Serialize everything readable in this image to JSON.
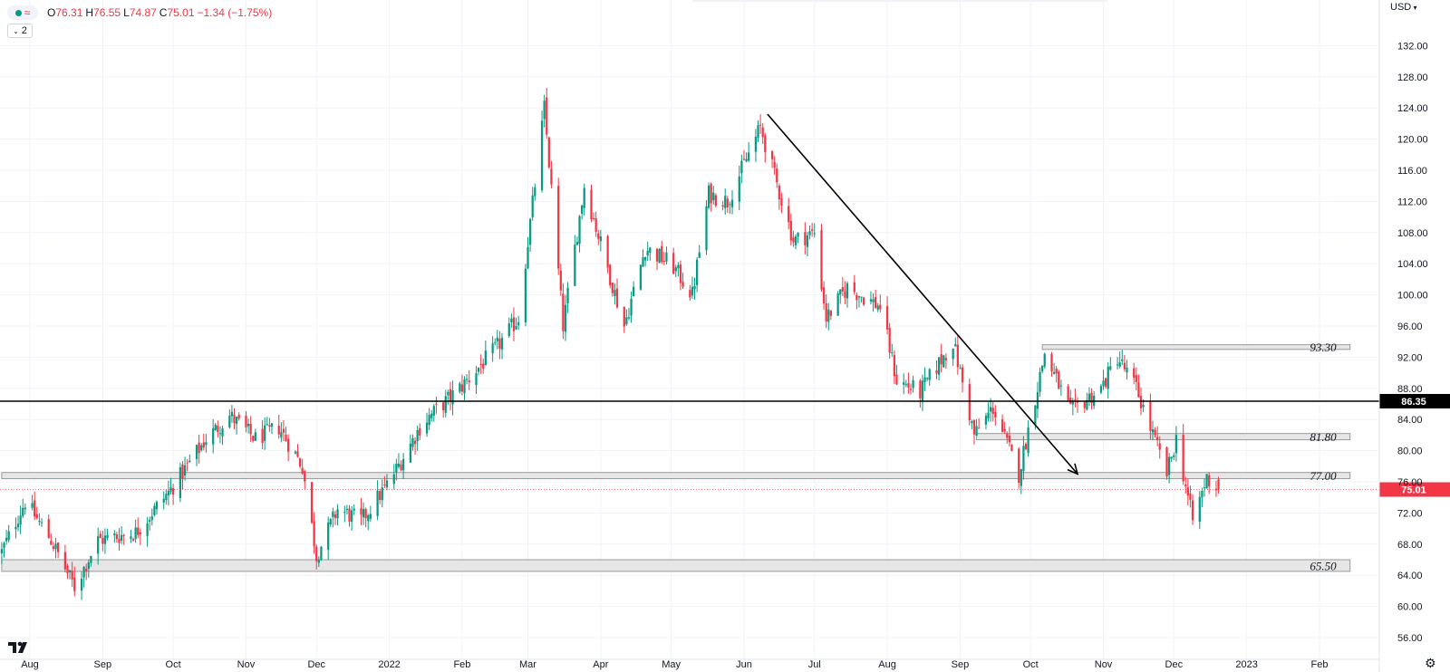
{
  "legend": {
    "open_label": "O",
    "open": "76.31",
    "high_label": "H",
    "high": "76.55",
    "low_label": "L",
    "low": "74.87",
    "close_label": "C",
    "close": "75.01",
    "change": "−1.34 (−1.75%)",
    "indicator_count": "2"
  },
  "currency": "USD",
  "colors": {
    "up": "#089981",
    "down": "#f23645",
    "grid": "#f0f3fa",
    "text": "#131722",
    "zone_fill": "#e6e6e6",
    "zone_border": "#9a9a9a"
  },
  "chart_data": {
    "type": "candlestick",
    "ylim": [
      54,
      134
    ],
    "y_ticks": [
      "56.00",
      "60.00",
      "64.00",
      "68.00",
      "72.00",
      "76.00",
      "80.00",
      "84.00",
      "88.00",
      "92.00",
      "96.00",
      "100.00",
      "104.00",
      "108.00",
      "112.00",
      "116.00",
      "120.00",
      "124.00",
      "128.00",
      "132.00"
    ],
    "x_ticks": [
      {
        "label": "Aug",
        "date": "2021-08-01"
      },
      {
        "label": "Sep",
        "date": "2021-09-01"
      },
      {
        "label": "Oct",
        "date": "2021-10-01"
      },
      {
        "label": "Nov",
        "date": "2021-11-01"
      },
      {
        "label": "Dec",
        "date": "2021-12-01"
      },
      {
        "label": "2022",
        "date": "2022-01-01"
      },
      {
        "label": "Feb",
        "date": "2022-02-01"
      },
      {
        "label": "Mar",
        "date": "2022-03-01"
      },
      {
        "label": "Apr",
        "date": "2022-04-01"
      },
      {
        "label": "May",
        "date": "2022-05-01"
      },
      {
        "label": "Jun",
        "date": "2022-06-01"
      },
      {
        "label": "Jul",
        "date": "2022-07-01"
      },
      {
        "label": "Aug",
        "date": "2022-08-01"
      },
      {
        "label": "Sep",
        "date": "2022-09-01"
      },
      {
        "label": "Oct",
        "date": "2022-10-01"
      },
      {
        "label": "Nov",
        "date": "2022-11-01"
      },
      {
        "label": "Dec",
        "date": "2022-12-01"
      },
      {
        "label": "2023",
        "date": "2023-01-01"
      },
      {
        "label": "Feb",
        "date": "2023-02-01"
      }
    ],
    "price_path": [
      {
        "date": "2021-07-20",
        "close": 67.0
      },
      {
        "date": "2021-07-30",
        "close": 73.5
      },
      {
        "date": "2021-08-10",
        "close": 68.5
      },
      {
        "date": "2021-08-20",
        "close": 62.5
      },
      {
        "date": "2021-08-30",
        "close": 68.5
      },
      {
        "date": "2021-09-15",
        "close": 69.5
      },
      {
        "date": "2021-09-30",
        "close": 75.0
      },
      {
        "date": "2021-10-15",
        "close": 81.5
      },
      {
        "date": "2021-10-25",
        "close": 84.5
      },
      {
        "date": "2021-11-05",
        "close": 81.5
      },
      {
        "date": "2021-11-15",
        "close": 83.0
      },
      {
        "date": "2021-11-25",
        "close": 78.0
      },
      {
        "date": "2021-12-01",
        "close": 66.5
      },
      {
        "date": "2021-12-10",
        "close": 72.5
      },
      {
        "date": "2021-12-20",
        "close": 71.0
      },
      {
        "date": "2022-01-01",
        "close": 76.0
      },
      {
        "date": "2022-01-15",
        "close": 83.5
      },
      {
        "date": "2022-01-31",
        "close": 88.0
      },
      {
        "date": "2022-02-15",
        "close": 93.0
      },
      {
        "date": "2022-02-25",
        "close": 97.0
      },
      {
        "date": "2022-03-08",
        "close": 124.0
      },
      {
        "date": "2022-03-16",
        "close": 96.0
      },
      {
        "date": "2022-03-25",
        "close": 114.0
      },
      {
        "date": "2022-04-11",
        "close": 96.0
      },
      {
        "date": "2022-04-20",
        "close": 106.0
      },
      {
        "date": "2022-05-01",
        "close": 104.0
      },
      {
        "date": "2022-05-10",
        "close": 100.0
      },
      {
        "date": "2022-05-17",
        "close": 113.0
      },
      {
        "date": "2022-05-25",
        "close": 112.0
      },
      {
        "date": "2022-06-08",
        "close": 121.5
      },
      {
        "date": "2022-06-22",
        "close": 107.0
      },
      {
        "date": "2022-07-01",
        "close": 108.0
      },
      {
        "date": "2022-07-06",
        "close": 97.0
      },
      {
        "date": "2022-07-15",
        "close": 101.0
      },
      {
        "date": "2022-07-29",
        "close": 98.5
      },
      {
        "date": "2022-08-05",
        "close": 89.0
      },
      {
        "date": "2022-08-15",
        "close": 87.5
      },
      {
        "date": "2022-08-29",
        "close": 94.0
      },
      {
        "date": "2022-09-07",
        "close": 82.0
      },
      {
        "date": "2022-09-15",
        "close": 85.5
      },
      {
        "date": "2022-09-26",
        "close": 77.0
      },
      {
        "date": "2022-10-07",
        "close": 92.5
      },
      {
        "date": "2022-10-18",
        "close": 85.0
      },
      {
        "date": "2022-10-31",
        "close": 88.0
      },
      {
        "date": "2022-11-07",
        "close": 92.0
      },
      {
        "date": "2022-11-15",
        "close": 88.0
      },
      {
        "date": "2022-11-28",
        "close": 77.0
      },
      {
        "date": "2022-12-02",
        "close": 81.5
      },
      {
        "date": "2022-12-09",
        "close": 71.0
      },
      {
        "date": "2022-12-15",
        "close": 76.5
      },
      {
        "date": "2022-12-20",
        "close": 75.01
      }
    ],
    "zones": [
      {
        "label": "93.30",
        "low": 93.0,
        "high": 93.6,
        "start": "2022-10-06",
        "end": "2023-02-14"
      },
      {
        "label": "81.80",
        "low": 81.4,
        "high": 82.2,
        "start": "2022-09-08",
        "end": "2023-02-14"
      },
      {
        "label": "77.00",
        "low": 76.4,
        "high": 77.2,
        "start": "2021-07-20",
        "end": "2023-02-14"
      },
      {
        "label": "65.50",
        "low": 64.5,
        "high": 66.0,
        "start": "2021-07-20",
        "end": "2023-02-14"
      }
    ],
    "horizontal_line": {
      "value": 86.35,
      "label": "86.35"
    },
    "last_price": {
      "value": 75.01,
      "label": "75.01"
    },
    "trend_arrow": {
      "from": {
        "date": "2022-06-11",
        "value": 123.2
      },
      "to": {
        "date": "2022-10-21",
        "value": 77.0
      }
    }
  }
}
